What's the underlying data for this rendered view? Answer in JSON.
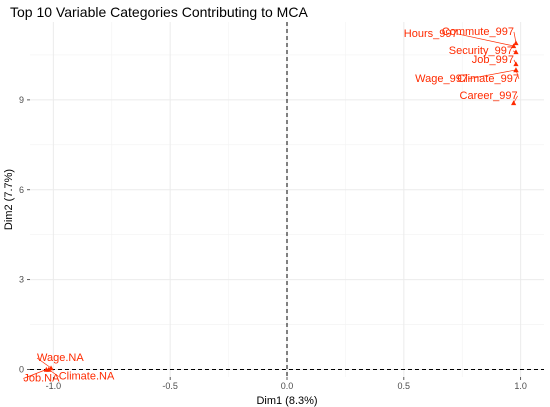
{
  "chart_data": {
    "type": "scatter",
    "title": "Top 10 Variable Categories Contributing to MCA",
    "xlabel": "Dim1 (8.3%)",
    "ylabel": "Dim2 (7.7%)",
    "xlim": [
      -1.1,
      1.1
    ],
    "ylim": [
      -0.25,
      11.6
    ],
    "x_ticks": [
      -1.0,
      -0.5,
      0.0,
      0.5,
      1.0
    ],
    "x_tick_labels": [
      "-1.0",
      "-0.5",
      "0.0",
      "0.5",
      "1.0"
    ],
    "y_ticks": [
      0,
      3,
      6,
      9
    ],
    "y_tick_labels": [
      "0",
      "3",
      "6",
      "9"
    ],
    "grid": true,
    "reference_lines": {
      "x": 0,
      "y": 0,
      "style": "dashed"
    },
    "point_color": "#ff2a00",
    "points": [
      {
        "label": "Commute_997",
        "x": 0.98,
        "y": 10.9
      },
      {
        "label": "Hours_997",
        "x": 0.97,
        "y": 10.8
      },
      {
        "label": "Security_997",
        "x": 0.98,
        "y": 10.6
      },
      {
        "label": "Job_997",
        "x": 0.98,
        "y": 10.2
      },
      {
        "label": "Wage_997",
        "x": 0.98,
        "y": 10.0
      },
      {
        "label": "Climate_997",
        "x": 0.98,
        "y": 10.0
      },
      {
        "label": "Career_997",
        "x": 0.97,
        "y": 8.9
      },
      {
        "label": "Wage.NA",
        "x": -1.01,
        "y": 0.05
      },
      {
        "label": "Job.NA",
        "x": -1.03,
        "y": 0.0
      },
      {
        "label": "Climate.NA",
        "x": -1.02,
        "y": 0.0
      }
    ]
  }
}
